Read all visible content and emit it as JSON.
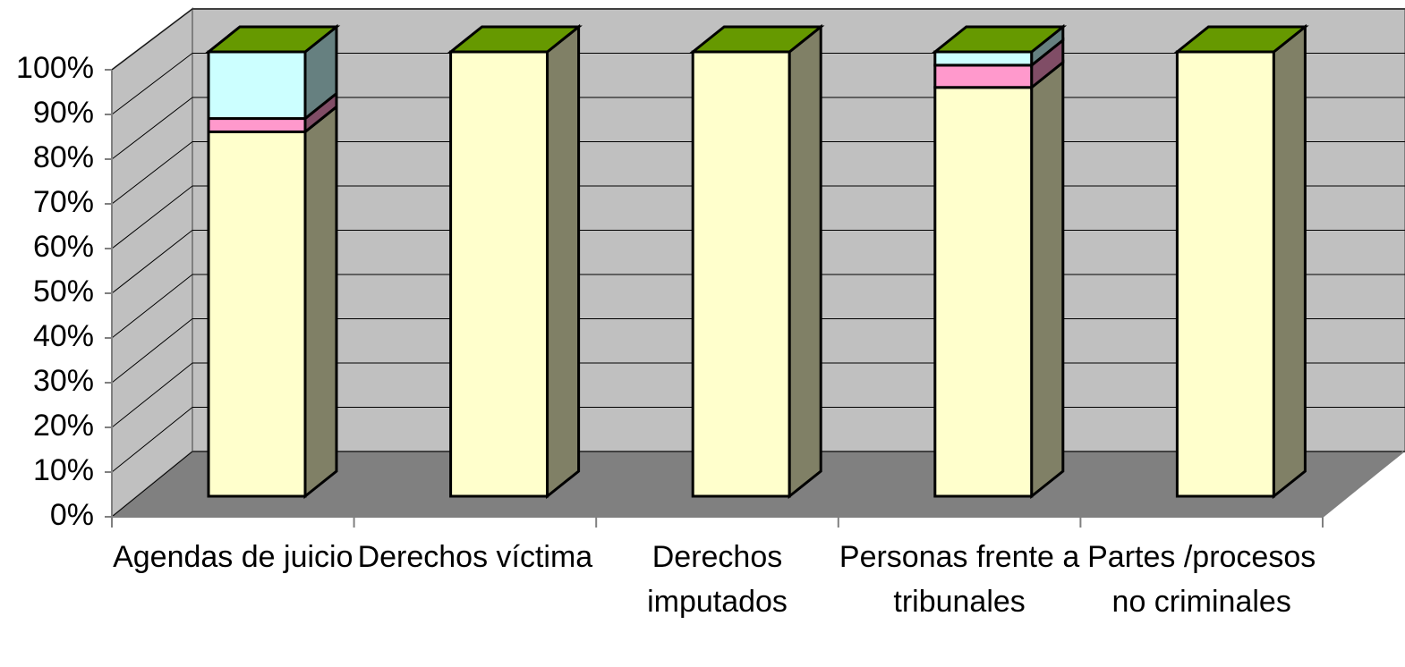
{
  "chart_data": {
    "type": "bar3d_stacked",
    "categories": [
      "Agendas de juicio",
      "Derechos víctima",
      "Derechos imputados",
      "Personas frente a tribunales",
      "Partes /procesos no criminales"
    ],
    "series": [
      {
        "color": "#ffffcc",
        "values": [
          82,
          100,
          100,
          92,
          100
        ]
      },
      {
        "color": "#ff99cc",
        "values": [
          3,
          0,
          0,
          5,
          0
        ]
      },
      {
        "color": "#ccffff",
        "values": [
          15,
          0,
          0,
          3,
          0
        ]
      },
      {
        "color": "#669900",
        "values": [
          0,
          0,
          0,
          0,
          0
        ]
      }
    ],
    "ylim": [
      0,
      100
    ],
    "yticks": [
      {
        "value": 0,
        "label": "0%"
      },
      {
        "value": 10,
        "label": "10%"
      },
      {
        "value": 20,
        "label": "20%"
      },
      {
        "value": 30,
        "label": "30%"
      },
      {
        "value": 40,
        "label": "40%"
      },
      {
        "value": 50,
        "label": "50%"
      },
      {
        "value": 60,
        "label": "60%"
      },
      {
        "value": 70,
        "label": "70%"
      },
      {
        "value": 80,
        "label": "80%"
      },
      {
        "value": 90,
        "label": "90%"
      },
      {
        "value": 100,
        "label": "100%"
      }
    ],
    "grid": true
  }
}
